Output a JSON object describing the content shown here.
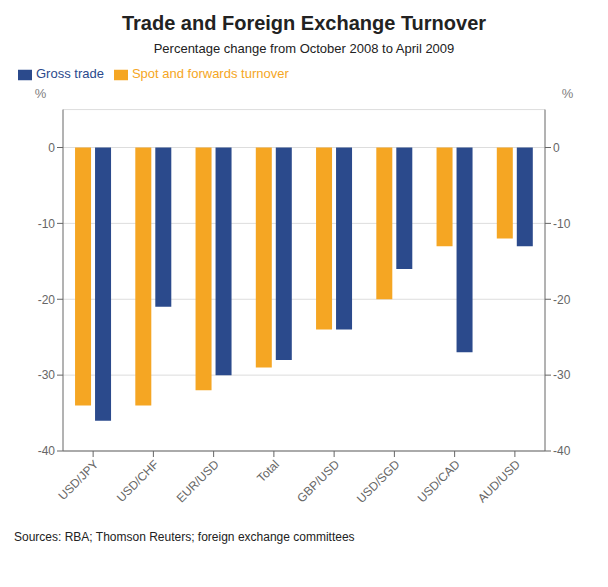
{
  "chart_data": {
    "type": "bar",
    "title": "Trade and Foreign Exchange Turnover",
    "subtitle": "Percentage change from October 2008 to April 2009",
    "categories": [
      "USD/JPY",
      "USD/CHF",
      "EUR/USD",
      "Total",
      "GBP/USD",
      "USD/SGD",
      "USD/CAD",
      "AUD/USD"
    ],
    "series": [
      {
        "name": "Spot and forwards turnover",
        "color": "#F5A623",
        "values": [
          -34,
          -34,
          -32,
          -29,
          -24,
          -20,
          -13,
          -12
        ]
      },
      {
        "name": "Gross trade",
        "color": "#2B4A8C",
        "values": [
          -36,
          -21,
          -30,
          -28,
          -24,
          -16,
          -27,
          -13
        ]
      }
    ],
    "ylabel": "%",
    "y2label": "%",
    "ylim": [
      -40,
      5
    ],
    "yticks": [
      0,
      -10,
      -20,
      -30,
      -40
    ],
    "y2lim": [
      -40,
      5
    ],
    "y2ticks": [
      0,
      -10,
      -20,
      -30,
      -40
    ],
    "grid": true,
    "legend": "upper left",
    "annotations": [
      "Sources: RBA; Thomson Reuters; foreign exchange committees"
    ]
  }
}
